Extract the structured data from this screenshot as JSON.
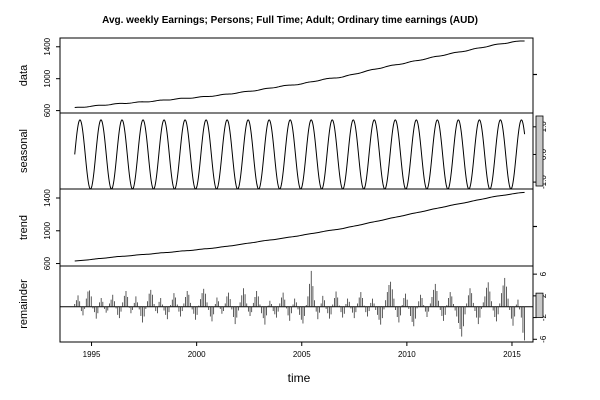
{
  "chart_data": {
    "type": "line",
    "title": "Avg. weekly Earnings; Persons; Full Time; Adult; Ordinary time earnings (AUD)",
    "xlabel": "time",
    "xlim": [
      1993.5,
      2016.0
    ],
    "x_ticks": [
      "1995",
      "2000",
      "2005",
      "2010",
      "2015"
    ],
    "panels": [
      {
        "name": "data",
        "ylim": [
          570,
          1510
        ],
        "y_ticks_left": [
          "600",
          "1000",
          "1400"
        ],
        "x": [
          1994.2,
          1995,
          1996,
          1997,
          1998,
          1999,
          2000,
          2001,
          2002,
          2003,
          2004,
          2005,
          2006,
          2007,
          2008,
          2009,
          2010,
          2011,
          2012,
          2013,
          2014,
          2015,
          2015.6
        ],
        "values": [
          635,
          655,
          680,
          700,
          720,
          745,
          765,
          790,
          825,
          860,
          905,
          935,
          990,
          1025,
          1090,
          1150,
          1200,
          1255,
          1310,
          1360,
          1415,
          1460,
          1475
        ]
      },
      {
        "name": "seasonal",
        "ylim": [
          -1.25,
          1.5
        ],
        "y_ticks_right": [
          "-1.0",
          "0.0",
          "1.0"
        ],
        "amplitude": 1.25,
        "start": 1994.2,
        "end": 2015.6
      },
      {
        "name": "trend",
        "ylim": [
          570,
          1510
        ],
        "y_ticks_left": [
          "600",
          "1000",
          "1400"
        ],
        "x": [
          1994.2,
          1995,
          1996,
          1997,
          1998,
          1999,
          2000,
          2001,
          2002,
          2003,
          2004,
          2005,
          2006,
          2007,
          2008,
          2009,
          2010,
          2011,
          2012,
          2013,
          2014,
          2015,
          2015.6
        ],
        "values": [
          630,
          650,
          678,
          700,
          722,
          745,
          768,
          795,
          830,
          870,
          905,
          945,
          990,
          1030,
          1085,
          1140,
          1195,
          1250,
          1305,
          1355,
          1410,
          1450,
          1470
        ]
      },
      {
        "name": "remainder",
        "ylim": [
          -6.5,
          7.5
        ],
        "y_ticks_right": [
          "-6",
          "-2",
          "2",
          "6"
        ],
        "values": [
          0.5,
          1.2,
          2.1,
          1.0,
          -0.8,
          -1.6,
          -0.4,
          1.5,
          2.8,
          3.0,
          1.9,
          -0.3,
          -1.0,
          -2.2,
          -1.2,
          0.8,
          1.6,
          0.9,
          -0.4,
          -1.1,
          -0.7,
          0.6,
          1.3,
          2.2,
          1.0,
          -0.3,
          -1.5,
          -2.1,
          -0.9,
          0.8,
          2.0,
          2.9,
          1.8,
          -0.2,
          -1.2,
          -0.6,
          0.7,
          1.9,
          0.8,
          -0.5,
          -1.7,
          -2.9,
          -1.8,
          -0.4,
          1.0,
          2.4,
          3.1,
          2.2,
          0.5,
          -0.8,
          -1.2,
          0.9,
          1.6,
          0.4,
          -0.7,
          -1.5,
          -2.3,
          -1.0,
          0.3,
          1.3,
          2.5,
          1.7,
          0.4,
          -0.9,
          -1.8,
          -0.8,
          0.6,
          1.8,
          2.9,
          2.2,
          0.7,
          -0.5,
          -1.3,
          -2.4,
          -1.5,
          0.2,
          1.4,
          2.5,
          3.3,
          2.4,
          0.8,
          -0.6,
          -1.8,
          -2.7,
          -1.4,
          0.5,
          1.7,
          1.0,
          -0.4,
          -1.3,
          -0.8,
          0.6,
          1.9,
          2.6,
          1.4,
          -0.5,
          -1.9,
          -3.2,
          -2.0,
          -0.7,
          0.8,
          2.1,
          3.4,
          2.3,
          0.6,
          -0.9,
          -1.7,
          -1.0,
          0.7,
          1.8,
          2.9,
          1.9,
          0.4,
          -1.2,
          -2.1,
          -3.3,
          -1.6,
          0.2,
          1.1,
          0.5,
          -0.8,
          -1.4,
          -2.0,
          -0.9,
          0.6,
          1.7,
          2.6,
          1.3,
          -0.3,
          -1.6,
          -2.6,
          -1.2,
          0.4,
          1.5,
          0.8,
          -0.5,
          -1.5,
          -2.4,
          -3.1,
          -1.7,
          0.3,
          1.9,
          4.2,
          6.6,
          3.8,
          1.2,
          -0.9,
          -2.3,
          -1.1,
          0.6,
          2.0,
          1.2,
          -0.4,
          -1.2,
          -2.2,
          -1.4,
          0.4,
          1.6,
          2.8,
          1.7,
          0.2,
          -1.0,
          -2.0,
          -1.3,
          0.5,
          1.5,
          0.9,
          -0.3,
          -1.1,
          -2.1,
          -1.0,
          0.6,
          1.7,
          2.7,
          1.6,
          0.2,
          -1.0,
          -1.8,
          -0.8,
          0.7,
          1.5,
          0.6,
          -0.6,
          -1.5,
          -2.4,
          -3.3,
          -2.1,
          -0.5,
          1.2,
          2.7,
          4.0,
          4.6,
          3.2,
          1.5,
          -0.6,
          -1.9,
          -2.9,
          -1.6,
          0.3,
          1.6,
          2.4,
          1.3,
          -0.4,
          -1.7,
          -2.8,
          -3.6,
          -2.2,
          -0.3,
          1.0,
          2.2,
          1.6,
          0.3,
          -0.9,
          -1.9,
          -0.9,
          0.6,
          1.8,
          3.1,
          4.2,
          2.9,
          1.1,
          -0.6,
          -1.7,
          -2.6,
          -1.5,
          0.3,
          1.6,
          2.7,
          1.9,
          0.5,
          -0.7,
          -1.8,
          -3.0,
          -4.1,
          -5.5,
          -3.6,
          -1.4,
          0.6,
          2.1,
          3.4,
          2.5,
          0.7,
          -0.8,
          -2.0,
          -3.2,
          -2.0,
          -0.4,
          0.8,
          1.9,
          3.5,
          4.5,
          2.8,
          1.0,
          -0.7,
          -1.9,
          -2.7,
          -1.4,
          0.6,
          2.5,
          3.9,
          5.3,
          3.7,
          1.5,
          -0.6,
          -2.2,
          -3.5,
          -1.8,
          0.4,
          1.3,
          -0.5,
          -2.0,
          -4.8,
          -6.2
        ]
      }
    ]
  }
}
